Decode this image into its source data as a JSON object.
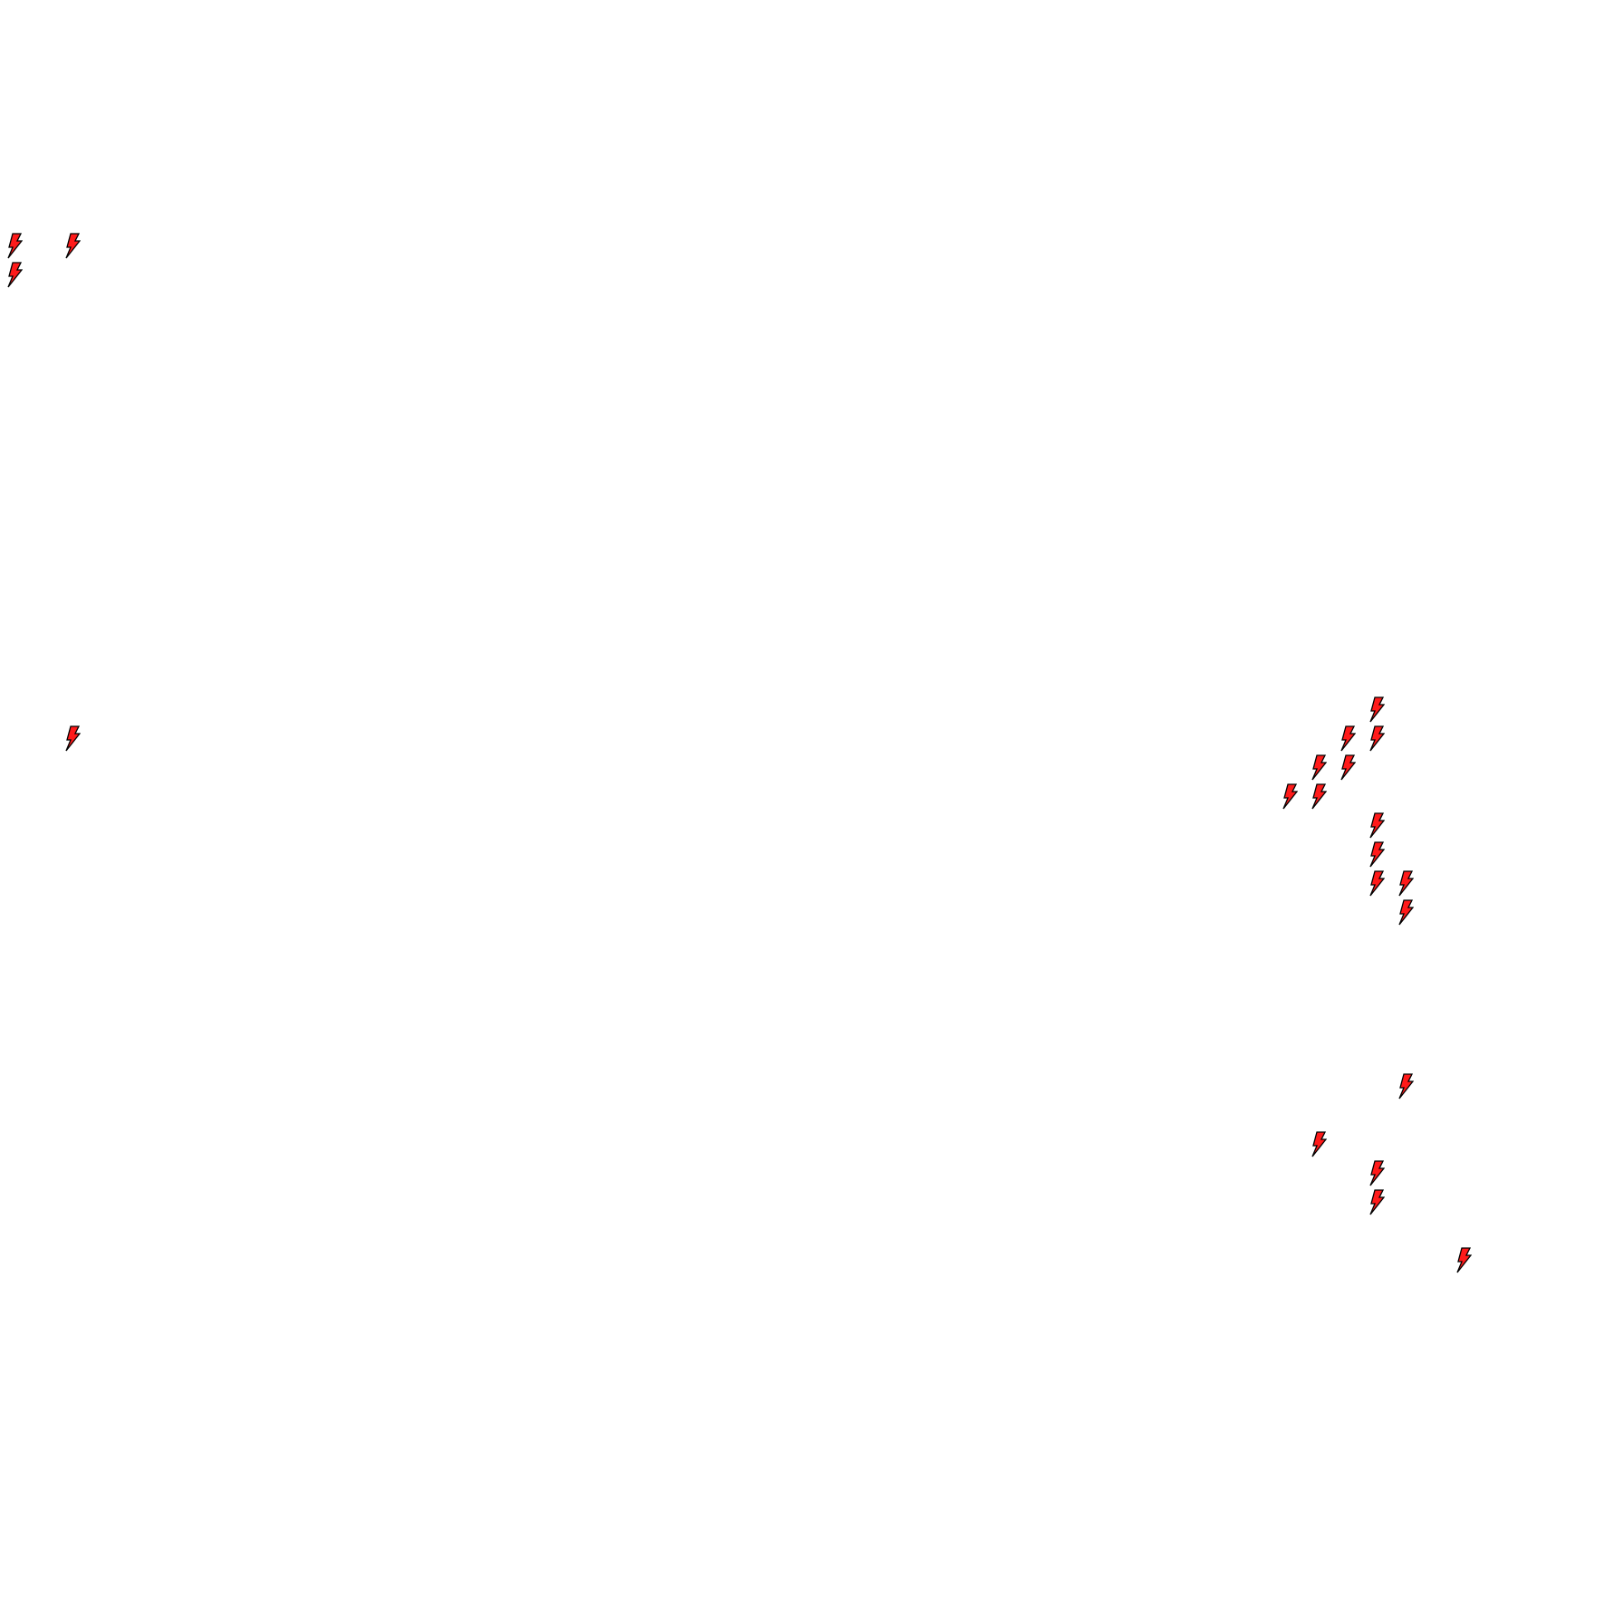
{
  "map": {
    "marker_icon": "lightning-bolt-icon",
    "marker_fill": "#ff1a1a",
    "marker_stroke": "#000000",
    "background": "#ffffff"
  }
}
